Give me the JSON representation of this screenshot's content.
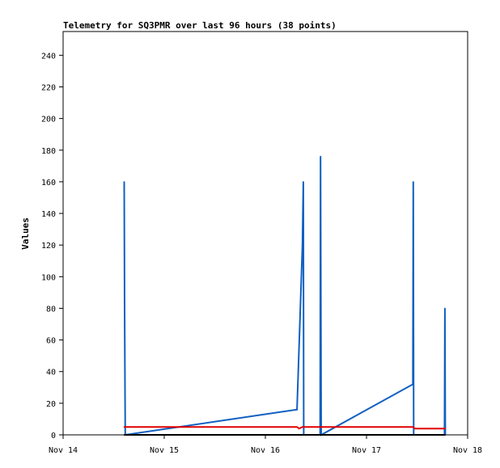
{
  "chart_data": {
    "type": "line",
    "title": "Telemetry for SQ3PMR over last 96 hours (38 points)",
    "xlabel": "",
    "ylabel": "Values",
    "x_ticks": [
      "Nov 14",
      "Nov 15",
      "Nov 16",
      "Nov 17",
      "Nov 18"
    ],
    "x_range_hours": [
      0,
      96
    ],
    "ylim": [
      0,
      255
    ],
    "y_ticks": [
      0,
      20,
      40,
      60,
      80,
      100,
      120,
      140,
      160,
      180,
      200,
      220,
      240
    ],
    "grid": false,
    "legend": "none",
    "series": [
      {
        "color": "#1060c0",
        "points": [
          [
            14.5,
            160
          ],
          [
            14.6,
            80
          ],
          [
            14.75,
            0
          ],
          [
            55.5,
            16
          ],
          [
            56.8,
            120
          ],
          [
            57.0,
            160
          ],
          [
            57.1,
            0
          ],
          [
            61.0,
            0
          ],
          [
            61.1,
            176
          ],
          [
            61.25,
            0
          ],
          [
            83.0,
            32
          ],
          [
            83.1,
            160
          ],
          [
            83.2,
            0
          ],
          [
            90.5,
            0
          ],
          [
            90.6,
            80
          ],
          [
            90.7,
            0
          ]
        ]
      },
      {
        "color": "#e00000",
        "points": [
          [
            14.5,
            5
          ],
          [
            55.5,
            5
          ],
          [
            56.0,
            4
          ],
          [
            56.8,
            5
          ],
          [
            83.0,
            5
          ],
          [
            83.5,
            4
          ],
          [
            90.7,
            4
          ]
        ]
      },
      {
        "color": "#000000",
        "points": [
          [
            14.5,
            0
          ],
          [
            90.7,
            0
          ]
        ]
      }
    ]
  }
}
